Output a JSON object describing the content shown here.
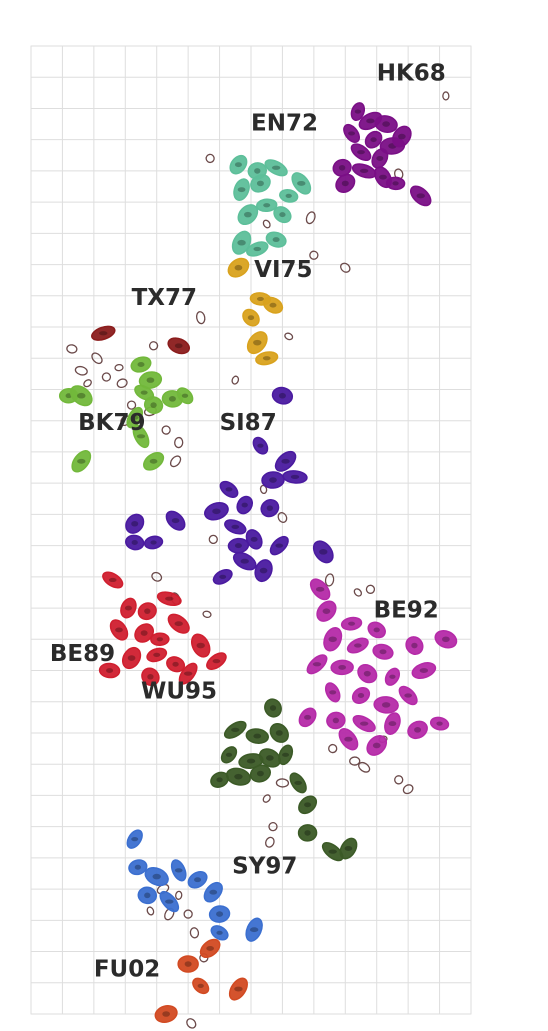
{
  "chart_data": {
    "type": "scatter",
    "title": "",
    "xlabel": "",
    "ylabel": "",
    "grid": true,
    "xlim": [
      0,
      14
    ],
    "ylim": [
      0,
      31
    ],
    "outline_color": "#6b4a4a",
    "clusters": [
      {
        "name": "HK68",
        "color": "#7a0f86",
        "label_xy": [
          11.0,
          29.9
        ],
        "points": [
          [
            10.4,
            28.9
          ],
          [
            10.8,
            28.6
          ],
          [
            11.3,
            28.5
          ],
          [
            10.2,
            28.2
          ],
          [
            10.9,
            28.0
          ],
          [
            11.5,
            27.8
          ],
          [
            10.5,
            27.6
          ],
          [
            11.1,
            27.4
          ],
          [
            9.9,
            27.1
          ],
          [
            10.6,
            27.0
          ],
          [
            11.2,
            26.8
          ],
          [
            10.0,
            26.6
          ],
          [
            11.6,
            26.6
          ],
          [
            12.4,
            26.2
          ],
          [
            11.8,
            28.1
          ]
        ]
      },
      {
        "name": "EN72",
        "color": "#5dbf9a",
        "label_xy": [
          7.0,
          28.3
        ],
        "points": [
          [
            6.6,
            27.2
          ],
          [
            7.2,
            27.0
          ],
          [
            7.8,
            27.1
          ],
          [
            6.7,
            26.4
          ],
          [
            7.3,
            26.6
          ],
          [
            8.2,
            26.2
          ],
          [
            8.6,
            26.6
          ],
          [
            6.9,
            25.6
          ],
          [
            7.5,
            25.9
          ],
          [
            8.0,
            25.6
          ],
          [
            6.7,
            24.7
          ],
          [
            7.2,
            24.5
          ],
          [
            7.8,
            24.8
          ]
        ]
      },
      {
        "name": "VI75",
        "color": "#d9a21d",
        "label_xy": [
          7.1,
          23.6
        ],
        "points": [
          [
            6.6,
            23.9
          ],
          [
            7.3,
            22.9
          ],
          [
            7.0,
            22.3
          ],
          [
            7.2,
            21.5
          ],
          [
            7.5,
            21.0
          ],
          [
            7.7,
            22.7
          ]
        ]
      },
      {
        "name": "TX77",
        "color": "#8b1c1c",
        "label_xy": [
          3.2,
          22.7
        ],
        "points": [
          [
            2.3,
            21.8
          ],
          [
            4.7,
            21.4
          ]
        ]
      },
      {
        "name": "BK79",
        "color": "#72b83b",
        "label_xy": [
          1.5,
          18.7
        ],
        "points": [
          [
            1.2,
            19.8
          ],
          [
            1.6,
            19.8
          ],
          [
            3.3,
            19.1
          ],
          [
            3.5,
            20.8
          ],
          [
            3.9,
            19.5
          ],
          [
            3.5,
            18.5
          ],
          [
            3.9,
            17.7
          ],
          [
            4.5,
            19.7
          ],
          [
            4.9,
            19.8
          ],
          [
            1.6,
            17.7
          ],
          [
            3.8,
            20.3
          ],
          [
            3.6,
            19.9
          ]
        ]
      },
      {
        "name": "SI87",
        "color": "#4a1aa0",
        "label_xy": [
          6.0,
          18.7
        ],
        "points": [
          [
            8.0,
            19.8
          ],
          [
            7.3,
            18.2
          ],
          [
            8.1,
            17.7
          ],
          [
            7.7,
            17.1
          ],
          [
            6.3,
            16.8
          ],
          [
            6.8,
            16.3
          ],
          [
            5.9,
            16.1
          ],
          [
            6.5,
            15.6
          ],
          [
            7.1,
            15.2
          ],
          [
            7.6,
            16.2
          ],
          [
            8.4,
            17.2
          ],
          [
            4.6,
            15.8
          ],
          [
            3.3,
            15.7
          ],
          [
            3.9,
            15.1
          ],
          [
            6.8,
            14.5
          ],
          [
            7.4,
            14.2
          ],
          [
            6.1,
            14.0
          ],
          [
            3.3,
            15.1
          ],
          [
            9.3,
            14.8
          ],
          [
            7.9,
            15.0
          ],
          [
            6.6,
            15.0
          ]
        ]
      },
      {
        "name": "BE89",
        "color": "#d01f2f",
        "label_xy": [
          0.6,
          11.3
        ],
        "points": [
          [
            2.6,
            13.9
          ],
          [
            3.1,
            13.0
          ],
          [
            3.7,
            12.9
          ],
          [
            4.4,
            13.3
          ],
          [
            2.8,
            12.3
          ],
          [
            3.6,
            12.2
          ],
          [
            4.1,
            12.0
          ],
          [
            4.7,
            12.5
          ],
          [
            3.2,
            11.4
          ],
          [
            4.0,
            11.5
          ],
          [
            4.6,
            11.2
          ],
          [
            5.4,
            11.8
          ],
          [
            5.9,
            11.3
          ],
          [
            2.5,
            11.0
          ],
          [
            3.8,
            10.8
          ],
          [
            5.0,
            10.9
          ]
        ]
      },
      {
        "name": "BE92",
        "color": "#b52aa8",
        "label_xy": [
          10.9,
          12.7
        ],
        "points": [
          [
            9.2,
            13.6
          ],
          [
            9.4,
            12.9
          ],
          [
            10.2,
            12.5
          ],
          [
            11.0,
            12.3
          ],
          [
            9.6,
            12.0
          ],
          [
            10.4,
            11.8
          ],
          [
            11.2,
            11.6
          ],
          [
            12.2,
            11.8
          ],
          [
            9.1,
            11.2
          ],
          [
            9.9,
            11.1
          ],
          [
            10.7,
            10.9
          ],
          [
            11.5,
            10.8
          ],
          [
            12.5,
            11.0
          ],
          [
            13.2,
            12.0
          ],
          [
            9.6,
            10.3
          ],
          [
            10.5,
            10.2
          ],
          [
            11.3,
            9.9
          ],
          [
            12.0,
            10.2
          ],
          [
            8.8,
            9.5
          ],
          [
            9.7,
            9.4
          ],
          [
            10.6,
            9.3
          ],
          [
            11.5,
            9.3
          ],
          [
            12.3,
            9.1
          ],
          [
            13.0,
            9.3
          ],
          [
            10.1,
            8.8
          ],
          [
            11.0,
            8.6
          ]
        ]
      },
      {
        "name": "WU95",
        "color": "#3b5a26",
        "label_xy": [
          3.5,
          10.1
        ],
        "points": [
          [
            7.7,
            9.8
          ],
          [
            6.5,
            9.1
          ],
          [
            7.2,
            8.9
          ],
          [
            7.9,
            9.0
          ],
          [
            6.3,
            8.3
          ],
          [
            7.0,
            8.1
          ],
          [
            7.6,
            8.2
          ],
          [
            8.1,
            8.3
          ],
          [
            6.0,
            7.5
          ],
          [
            6.6,
            7.6
          ],
          [
            8.5,
            7.4
          ],
          [
            8.8,
            6.7
          ],
          [
            8.8,
            5.8
          ],
          [
            9.6,
            5.2
          ],
          [
            10.1,
            5.3
          ],
          [
            7.3,
            7.7
          ]
        ]
      },
      {
        "name": "SY97",
        "color": "#3b6fd0",
        "label_xy": [
          6.4,
          4.5
        ],
        "points": [
          [
            3.3,
            5.6
          ],
          [
            3.4,
            4.7
          ],
          [
            4.0,
            4.4
          ],
          [
            4.7,
            4.6
          ],
          [
            5.3,
            4.3
          ],
          [
            3.7,
            3.8
          ],
          [
            4.4,
            3.6
          ],
          [
            5.8,
            3.9
          ],
          [
            6.0,
            3.2
          ],
          [
            6.0,
            2.6
          ],
          [
            7.1,
            2.7
          ]
        ]
      },
      {
        "name": "FU02",
        "color": "#d24a22",
        "label_xy": [
          2.0,
          1.2
        ],
        "points": [
          [
            5.7,
            2.1
          ],
          [
            5.0,
            1.6
          ],
          [
            5.4,
            0.9
          ],
          [
            6.6,
            0.8
          ],
          [
            4.3,
            0.0
          ]
        ]
      }
    ],
    "unfilled_points": [
      [
        13.2,
        29.4
      ],
      [
        5.7,
        27.4
      ],
      [
        11.7,
        26.9
      ],
      [
        8.9,
        25.5
      ],
      [
        7.5,
        25.3
      ],
      [
        9.0,
        24.3
      ],
      [
        10.0,
        23.9
      ],
      [
        5.4,
        22.3
      ],
      [
        8.2,
        21.7
      ],
      [
        3.9,
        21.4
      ],
      [
        1.3,
        21.3
      ],
      [
        2.1,
        21.0
      ],
      [
        2.8,
        20.7
      ],
      [
        2.4,
        20.4
      ],
      [
        2.9,
        20.2
      ],
      [
        1.6,
        20.6
      ],
      [
        1.8,
        20.2
      ],
      [
        3.2,
        19.5
      ],
      [
        3.0,
        19.0
      ],
      [
        3.8,
        19.3
      ],
      [
        6.5,
        20.3
      ],
      [
        4.3,
        18.7
      ],
      [
        4.7,
        18.3
      ],
      [
        4.6,
        17.7
      ],
      [
        7.4,
        16.8
      ],
      [
        5.8,
        15.2
      ],
      [
        8.0,
        15.9
      ],
      [
        9.5,
        13.9
      ],
      [
        10.4,
        13.5
      ],
      [
        10.8,
        13.6
      ],
      [
        4.0,
        14.0
      ],
      [
        4.6,
        13.3
      ],
      [
        5.6,
        12.8
      ],
      [
        9.6,
        8.5
      ],
      [
        10.3,
        8.1
      ],
      [
        10.6,
        7.9
      ],
      [
        11.2,
        8.8
      ],
      [
        11.7,
        7.5
      ],
      [
        12.0,
        7.2
      ],
      [
        8.0,
        7.4
      ],
      [
        7.5,
        6.9
      ],
      [
        7.7,
        6.0
      ],
      [
        7.6,
        5.5
      ],
      [
        4.2,
        4.0
      ],
      [
        4.7,
        3.8
      ],
      [
        5.0,
        3.2
      ],
      [
        5.2,
        2.6
      ],
      [
        4.4,
        3.2
      ],
      [
        3.8,
        3.3
      ],
      [
        5.5,
        1.8
      ],
      [
        5.1,
        -0.3
      ]
    ]
  }
}
